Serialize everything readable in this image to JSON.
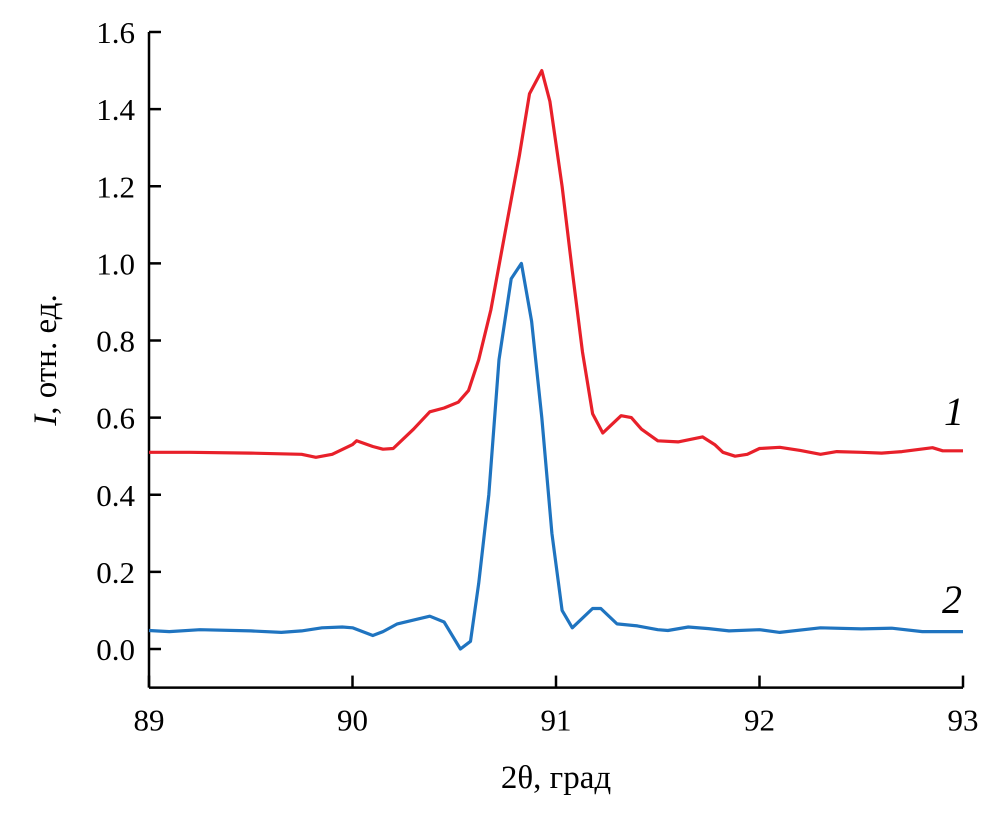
{
  "chart_data": {
    "type": "line",
    "title": "",
    "xlabel": "2θ, град",
    "ylabel_italic": "I",
    "ylabel_rest": ", отн. ед.",
    "xlim": [
      89,
      93
    ],
    "ylim": [
      -0.1,
      1.6
    ],
    "xticks": [
      "89",
      "90",
      "91",
      "92",
      "93"
    ],
    "yticks": [
      "0.0",
      "0.2",
      "0.4",
      "0.6",
      "0.8",
      "1.0",
      "1.2",
      "1.4",
      "1.6"
    ],
    "grid": false,
    "series": [
      {
        "name": "1",
        "color": "#e8202a",
        "x": [
          89.0,
          89.2,
          89.5,
          89.75,
          89.82,
          89.9,
          90.0,
          90.02,
          90.1,
          90.15,
          90.2,
          90.3,
          90.38,
          90.45,
          90.52,
          90.57,
          90.62,
          90.68,
          90.75,
          90.82,
          90.87,
          90.93,
          90.97,
          91.03,
          91.08,
          91.13,
          91.18,
          91.23,
          91.27,
          91.32,
          91.37,
          91.42,
          91.5,
          91.6,
          91.72,
          91.78,
          91.82,
          91.88,
          91.94,
          92.0,
          92.1,
          92.2,
          92.3,
          92.38,
          92.5,
          92.6,
          92.7,
          92.85,
          92.9,
          93.0
        ],
        "y": [
          0.51,
          0.51,
          0.508,
          0.505,
          0.497,
          0.505,
          0.53,
          0.54,
          0.525,
          0.518,
          0.52,
          0.57,
          0.615,
          0.625,
          0.64,
          0.67,
          0.75,
          0.88,
          1.08,
          1.28,
          1.44,
          1.5,
          1.42,
          1.2,
          0.98,
          0.77,
          0.61,
          0.56,
          0.58,
          0.605,
          0.6,
          0.57,
          0.54,
          0.537,
          0.55,
          0.53,
          0.51,
          0.5,
          0.505,
          0.52,
          0.523,
          0.515,
          0.505,
          0.512,
          0.51,
          0.508,
          0.512,
          0.522,
          0.514,
          0.514
        ]
      },
      {
        "name": "2",
        "color": "#1f74c0",
        "x": [
          89.0,
          89.1,
          89.25,
          89.5,
          89.65,
          89.75,
          89.85,
          89.95,
          90.0,
          90.1,
          90.15,
          90.22,
          90.3,
          90.38,
          90.45,
          90.53,
          90.58,
          90.62,
          90.67,
          90.72,
          90.78,
          90.83,
          90.88,
          90.93,
          90.98,
          91.03,
          91.08,
          91.18,
          91.22,
          91.3,
          91.4,
          91.5,
          91.55,
          91.65,
          91.75,
          91.85,
          92.0,
          92.1,
          92.3,
          92.5,
          92.65,
          92.8,
          93.0
        ],
        "y": [
          0.048,
          0.045,
          0.05,
          0.047,
          0.043,
          0.047,
          0.055,
          0.057,
          0.055,
          0.035,
          0.045,
          0.065,
          0.075,
          0.085,
          0.07,
          0.0,
          0.02,
          0.17,
          0.4,
          0.75,
          0.96,
          1.0,
          0.85,
          0.6,
          0.3,
          0.1,
          0.055,
          0.105,
          0.105,
          0.065,
          0.06,
          0.05,
          0.048,
          0.057,
          0.053,
          0.047,
          0.05,
          0.043,
          0.055,
          0.052,
          0.054,
          0.045,
          0.045
        ]
      }
    ]
  }
}
